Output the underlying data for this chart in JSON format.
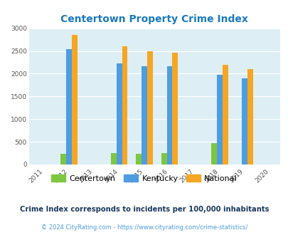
{
  "title": "Centertown Property Crime Index",
  "title_color": "#1a7abf",
  "years": [
    2011,
    2012,
    2013,
    2014,
    2015,
    2016,
    2017,
    2018,
    2019,
    2020
  ],
  "data_years": [
    2012,
    2014,
    2015,
    2016,
    2018,
    2019
  ],
  "centertown": [
    230,
    245,
    240,
    245,
    470,
    0
  ],
  "kentucky": [
    2540,
    2230,
    2170,
    2170,
    1975,
    1890
  ],
  "national": [
    2860,
    2600,
    2500,
    2460,
    2190,
    2100
  ],
  "centertown_color": "#7dc642",
  "kentucky_color": "#4d9de0",
  "national_color": "#f5a623",
  "bg_color": "#ddeef5",
  "bar_width": 0.22,
  "ylim": [
    0,
    3000
  ],
  "yticks": [
    0,
    500,
    1000,
    1500,
    2000,
    2500,
    3000
  ],
  "xlim": [
    2010.4,
    2020.4
  ],
  "footnote1": "Crime Index corresponds to incidents per 100,000 inhabitants",
  "footnote2": "© 2024 CityRating.com - https://www.cityrating.com/crime-statistics/",
  "footnote1_color": "#1a3a5c",
  "footnote2_color": "#4d9de0"
}
